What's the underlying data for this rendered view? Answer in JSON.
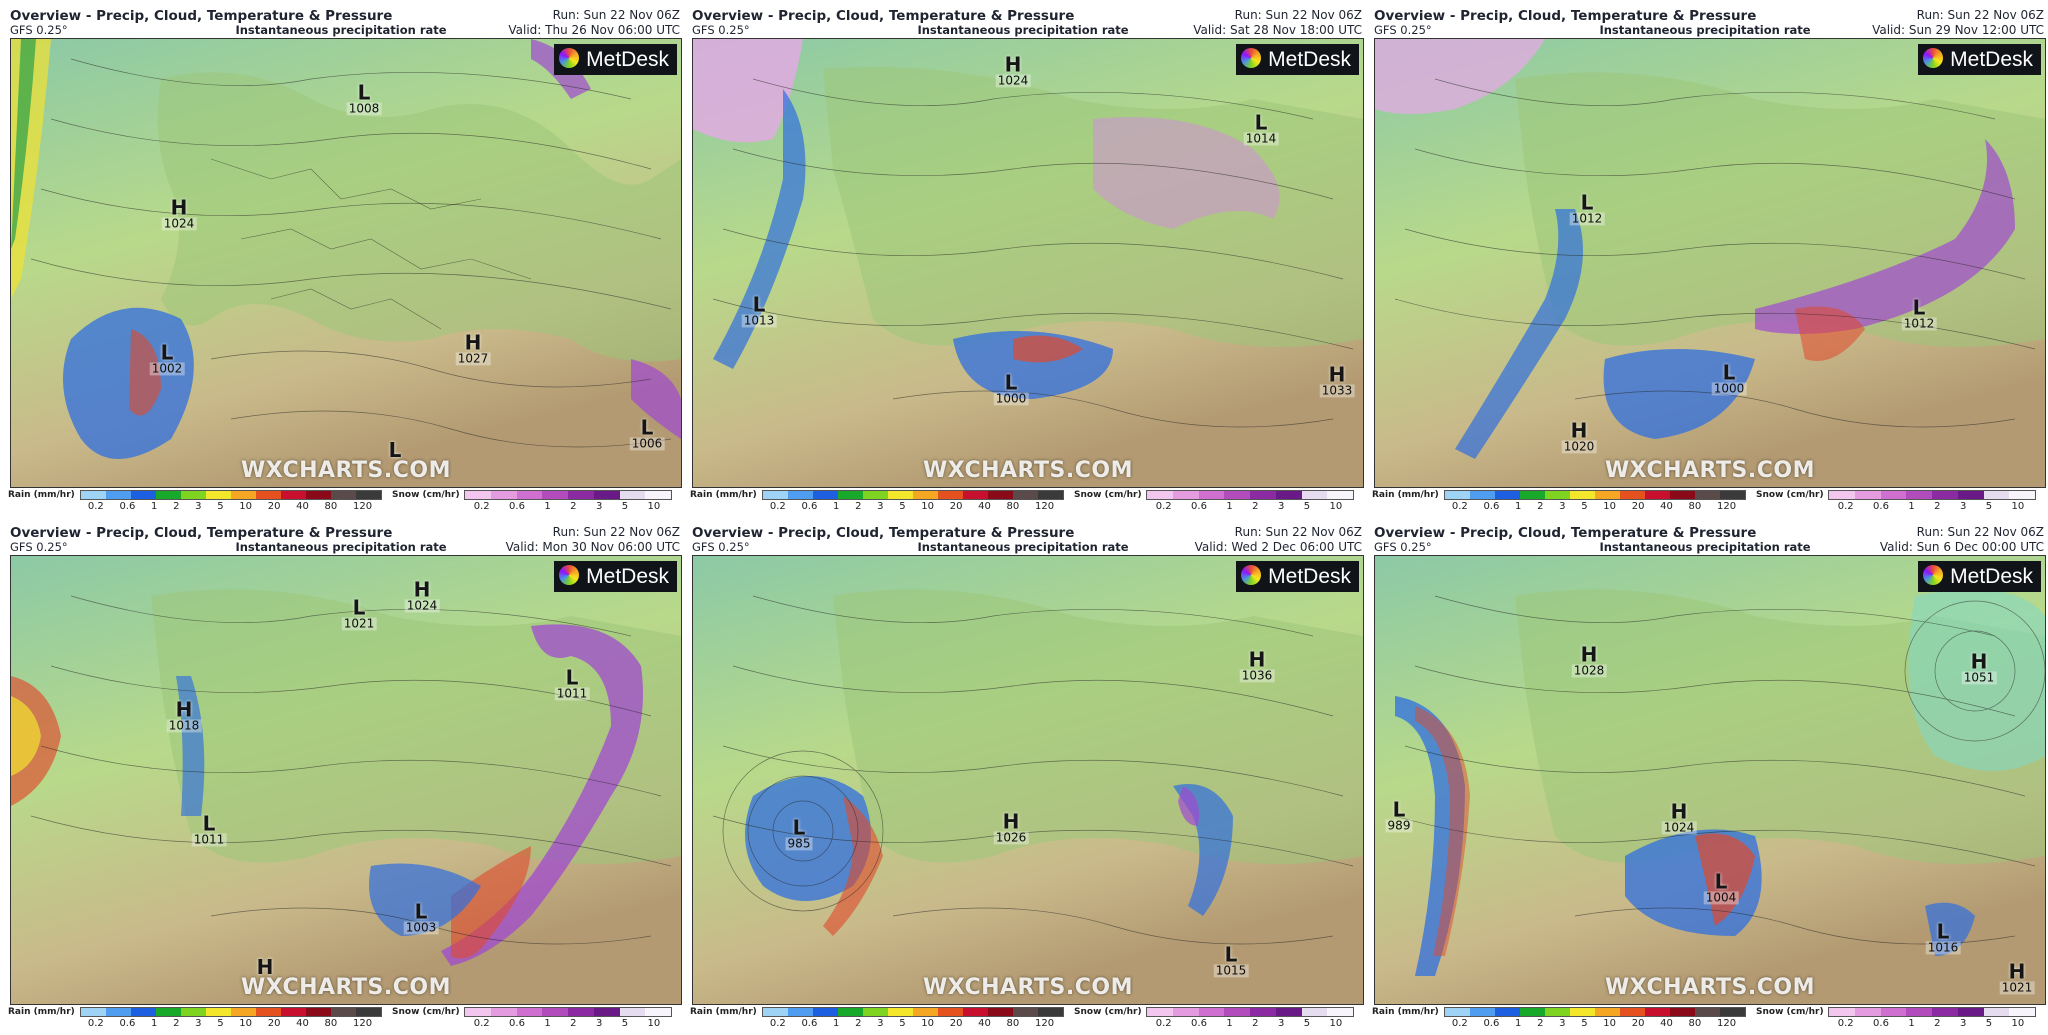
{
  "header": {
    "title": "Overview - Precip, Cloud, Temperature & Pressure",
    "model": "GFS 0.25°",
    "subtitle": "Instantaneous precipitation rate",
    "run": "Run: Sun 22 Nov 06Z"
  },
  "branding": {
    "provider": "MetDesk",
    "watermark": "WXCHARTS.COM"
  },
  "legend": {
    "rain_label": "Rain (mm/hr)",
    "rain_ticks": [
      "0.2",
      "0.6",
      "1",
      "2",
      "3",
      "5",
      "10",
      "20",
      "40",
      "80",
      "120"
    ],
    "rain_colors": [
      "#9fd3f5",
      "#4f9df0",
      "#1c5fe0",
      "#18a82a",
      "#7fd321",
      "#f3e62b",
      "#f5a623",
      "#e5521f",
      "#c8102e",
      "#8b0a1a",
      "#5a4a4a",
      "#3a3a3a"
    ],
    "snow_label": "Snow (cm/hr)",
    "snow_ticks": [
      "0.2",
      "0.6",
      "1",
      "2",
      "3",
      "5",
      "10"
    ],
    "snow_colors": [
      "#f2c6ef",
      "#e59be0",
      "#cf6fd0",
      "#b24bbc",
      "#8c2aa3",
      "#6a1a86",
      "#e6dcf0",
      "#f8f4fb"
    ]
  },
  "panels": [
    {
      "valid": "Valid: Thu 26 Nov 06:00 UTC",
      "systems": [
        {
          "type": "L",
          "pressure": "1008"
        },
        {
          "type": "H",
          "pressure": "1024"
        },
        {
          "type": "L",
          "pressure": "1002"
        },
        {
          "type": "H",
          "pressure": "1027"
        },
        {
          "type": "L",
          "pressure": "1006"
        },
        {
          "type": "L",
          "pressure": ""
        }
      ]
    },
    {
      "valid": "Valid: Sat 28 Nov 18:00 UTC",
      "systems": [
        {
          "type": "H",
          "pressure": "1024"
        },
        {
          "type": "L",
          "pressure": "1014"
        },
        {
          "type": "L",
          "pressure": "1013"
        },
        {
          "type": "L",
          "pressure": "1000"
        },
        {
          "type": "H",
          "pressure": "1033"
        }
      ]
    },
    {
      "valid": "Valid: Sun 29 Nov 12:00 UTC",
      "systems": [
        {
          "type": "L",
          "pressure": "1012"
        },
        {
          "type": "L",
          "pressure": "1012"
        },
        {
          "type": "L",
          "pressure": "1000"
        },
        {
          "type": "H",
          "pressure": "1020"
        }
      ]
    },
    {
      "valid": "Valid: Mon 30 Nov 06:00 UTC",
      "systems": [
        {
          "type": "L",
          "pressure": "1021"
        },
        {
          "type": "H",
          "pressure": "1024"
        },
        {
          "type": "H",
          "pressure": "1018"
        },
        {
          "type": "L",
          "pressure": "1011"
        },
        {
          "type": "L",
          "pressure": "1011"
        },
        {
          "type": "L",
          "pressure": "1003"
        },
        {
          "type": "H",
          "pressure": ""
        }
      ]
    },
    {
      "valid": "Valid: Wed 2 Dec 06:00 UTC",
      "systems": [
        {
          "type": "H",
          "pressure": "1036"
        },
        {
          "type": "L",
          "pressure": "985"
        },
        {
          "type": "H",
          "pressure": "1026"
        },
        {
          "type": "L",
          "pressure": "1015"
        }
      ]
    },
    {
      "valid": "Valid: Sun 6 Dec 00:00 UTC",
      "systems": [
        {
          "type": "H",
          "pressure": "1028"
        },
        {
          "type": "H",
          "pressure": "1051"
        },
        {
          "type": "L",
          "pressure": "989"
        },
        {
          "type": "H",
          "pressure": "1024"
        },
        {
          "type": "L",
          "pressure": "1004"
        },
        {
          "type": "L",
          "pressure": "1016"
        },
        {
          "type": "H",
          "pressure": "1021"
        }
      ]
    }
  ]
}
